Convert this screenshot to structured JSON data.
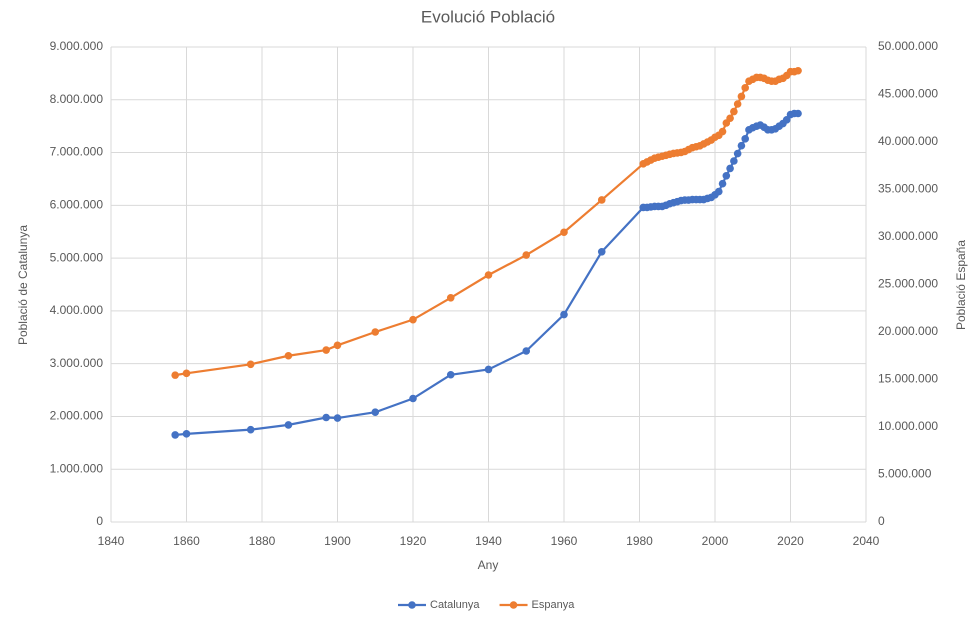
{
  "chart_data": {
    "type": "line",
    "title": "Evolució Població",
    "xlabel": "Any",
    "ylabel": "Població de Catalunya",
    "y2label": "Població España",
    "x": [
      1857,
      1860,
      1877,
      1887,
      1897,
      1900,
      1910,
      1920,
      1930,
      1940,
      1950,
      1960,
      1970,
      1981,
      1982,
      1983,
      1984,
      1985,
      1986,
      1987,
      1988,
      1989,
      1990,
      1991,
      1992,
      1993,
      1994,
      1995,
      1996,
      1997,
      1998,
      1999,
      2000,
      2001,
      2002,
      2003,
      2004,
      2005,
      2006,
      2007,
      2008,
      2009,
      2010,
      2011,
      2012,
      2013,
      2014,
      2015,
      2016,
      2017,
      2018,
      2019,
      2020,
      2021,
      2022
    ],
    "series": [
      {
        "name": "Catalunya",
        "color": "#4472c4",
        "axis": "y",
        "values": [
          1650000,
          1670000,
          1750000,
          1840000,
          1980000,
          1970000,
          2080000,
          2340000,
          2790000,
          2890000,
          3240000,
          3930000,
          5120000,
          5960000,
          5960000,
          5970000,
          5980000,
          5980000,
          5980000,
          6000000,
          6030000,
          6050000,
          6070000,
          6090000,
          6100000,
          6100000,
          6110000,
          6110000,
          6110000,
          6110000,
          6130000,
          6150000,
          6200000,
          6260000,
          6410000,
          6560000,
          6700000,
          6840000,
          6980000,
          7130000,
          7260000,
          7430000,
          7470000,
          7500000,
          7520000,
          7480000,
          7430000,
          7430000,
          7450000,
          7500000,
          7550000,
          7620000,
          7720000,
          7740000,
          7740000
        ]
      },
      {
        "name": "Espanya",
        "color": "#ed7d31",
        "axis": "y2",
        "values": [
          15460000,
          15650000,
          16600000,
          17500000,
          18100000,
          18600000,
          20000000,
          21300000,
          23600000,
          26000000,
          28100000,
          30500000,
          33900000,
          37700000,
          37900000,
          38100000,
          38300000,
          38400000,
          38500000,
          38600000,
          38700000,
          38800000,
          38850000,
          38900000,
          39000000,
          39200000,
          39400000,
          39500000,
          39600000,
          39800000,
          40000000,
          40200000,
          40500000,
          40700000,
          41100000,
          42000000,
          42500000,
          43200000,
          44000000,
          44800000,
          45700000,
          46400000,
          46600000,
          46800000,
          46800000,
          46700000,
          46500000,
          46400000,
          46400000,
          46600000,
          46700000,
          47000000,
          47400000,
          47400000,
          47500000
        ]
      }
    ],
    "xlim": [
      1840,
      2040
    ],
    "xticks": [
      1840,
      1860,
      1880,
      1900,
      1920,
      1940,
      1960,
      1980,
      2000,
      2020,
      2040
    ],
    "ylim": [
      0,
      9000000
    ],
    "yticks": [
      0,
      {
        "value": 1000000,
        "label": "1.000.000"
      },
      {
        "value": 2000000,
        "label": "2.000.000"
      },
      {
        "value": 3000000,
        "label": "3.000.000"
      },
      {
        "value": 4000000,
        "label": "4.000.000"
      },
      {
        "value": 5000000,
        "label": "5.000.000"
      },
      {
        "value": 6000000,
        "label": "6.000.000"
      },
      {
        "value": 7000000,
        "label": "7.000.000"
      },
      {
        "value": 8000000,
        "label": "8.000.000"
      },
      {
        "value": 9000000,
        "label": "9.000.000"
      }
    ],
    "y2lim": [
      0,
      50000000
    ],
    "y2ticks": [
      0,
      {
        "value": 5000000,
        "label": "5.000.000"
      },
      {
        "value": 10000000,
        "label": "10.000.000"
      },
      {
        "value": 15000000,
        "label": "15.000.000"
      },
      {
        "value": 20000000,
        "label": "20.000.000"
      },
      {
        "value": 25000000,
        "label": "25.000.000"
      },
      {
        "value": 30000000,
        "label": "30.000.000"
      },
      {
        "value": 35000000,
        "label": "35.000.000"
      },
      {
        "value": 40000000,
        "label": "40.000.000"
      },
      {
        "value": 45000000,
        "label": "45.000.000"
      },
      {
        "value": 50000000,
        "label": "50.000.000"
      }
    ],
    "grid": true,
    "legend": "bottom"
  }
}
